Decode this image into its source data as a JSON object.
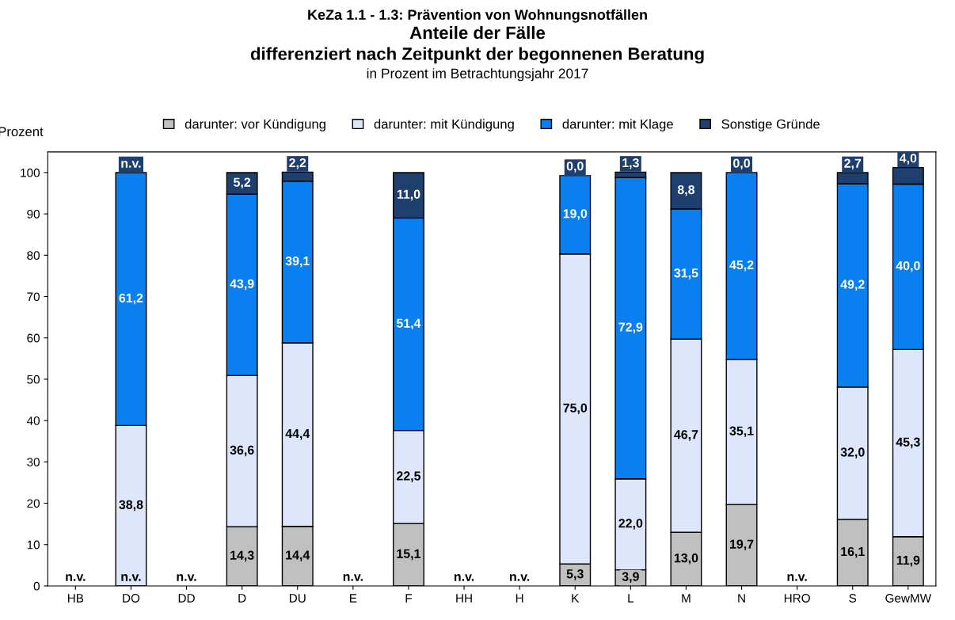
{
  "chart_data": {
    "type": "bar",
    "stacked": true,
    "title": "KeZa 1.1 - 1.3: Prävention von Wohnungsnotfällen\nAnteile der Fälle\ndifferenziert nach Zeitpunkt der begonnenen Beratung",
    "subtitle": "in Prozent im Betrachtungsjahr 2017",
    "ylabel": "Prozent",
    "categories": [
      "HB",
      "DO",
      "DD",
      "D",
      "DU",
      "E",
      "F",
      "HH",
      "H",
      "K",
      "L",
      "M",
      "N",
      "HRO",
      "S",
      "GewMW"
    ],
    "series": [
      {
        "name": "darunter: vor Kündigung",
        "color": "#c0c0c0",
        "values": [
          null,
          null,
          null,
          14.3,
          14.4,
          null,
          15.1,
          null,
          null,
          5.3,
          3.9,
          13.0,
          19.7,
          null,
          16.1,
          11.9
        ],
        "value_labels": [
          "n.v.",
          "n.v.",
          "n.v.",
          "14,3",
          "14,4",
          "n.v.",
          "15,1",
          "n.v.",
          "n.v.",
          "5,3",
          "3,9",
          "13,0",
          "19,7",
          "n.v.",
          "16,1",
          "11,9"
        ]
      },
      {
        "name": "darunter: mit Kündigung",
        "color": "#dde6fb",
        "values": [
          null,
          38.8,
          null,
          36.6,
          44.4,
          null,
          22.5,
          null,
          null,
          75.0,
          22.0,
          46.7,
          35.1,
          null,
          32.0,
          45.3
        ],
        "value_labels": [
          null,
          "38,8",
          null,
          "36,6",
          "44,4",
          null,
          "22,5",
          null,
          null,
          "75,0",
          "22,0",
          "46,7",
          "35,1",
          null,
          "32,0",
          "45,3"
        ]
      },
      {
        "name": "darunter: mit Klage",
        "color": "#0a7ff0",
        "values": [
          null,
          61.2,
          null,
          43.9,
          39.1,
          null,
          51.4,
          null,
          null,
          19.0,
          72.9,
          31.5,
          45.2,
          null,
          49.2,
          40.0
        ],
        "value_labels": [
          null,
          "61,2",
          null,
          "43,9",
          "39,1",
          null,
          "51,4",
          null,
          null,
          "19,0",
          "72,9",
          "31,5",
          "45,2",
          null,
          "49,2",
          "40,0"
        ]
      },
      {
        "name": "Sonstige Gründe",
        "color": "#1f3f6e",
        "values": [
          null,
          null,
          null,
          5.2,
          2.2,
          null,
          11.0,
          null,
          null,
          0.0,
          1.3,
          8.8,
          0.0,
          null,
          2.7,
          4.0
        ],
        "value_labels": [
          null,
          "n.v.",
          null,
          "5,2",
          "2,2",
          null,
          "11,0",
          null,
          null,
          "0,0",
          "1,3",
          "8,8",
          "0,0",
          null,
          "2,7",
          "4,0"
        ]
      }
    ],
    "ylim": [
      0,
      105
    ],
    "yticks": [
      0,
      10,
      20,
      30,
      40,
      50,
      60,
      70,
      80,
      90,
      100
    ],
    "legend": "top",
    "grid": false
  }
}
